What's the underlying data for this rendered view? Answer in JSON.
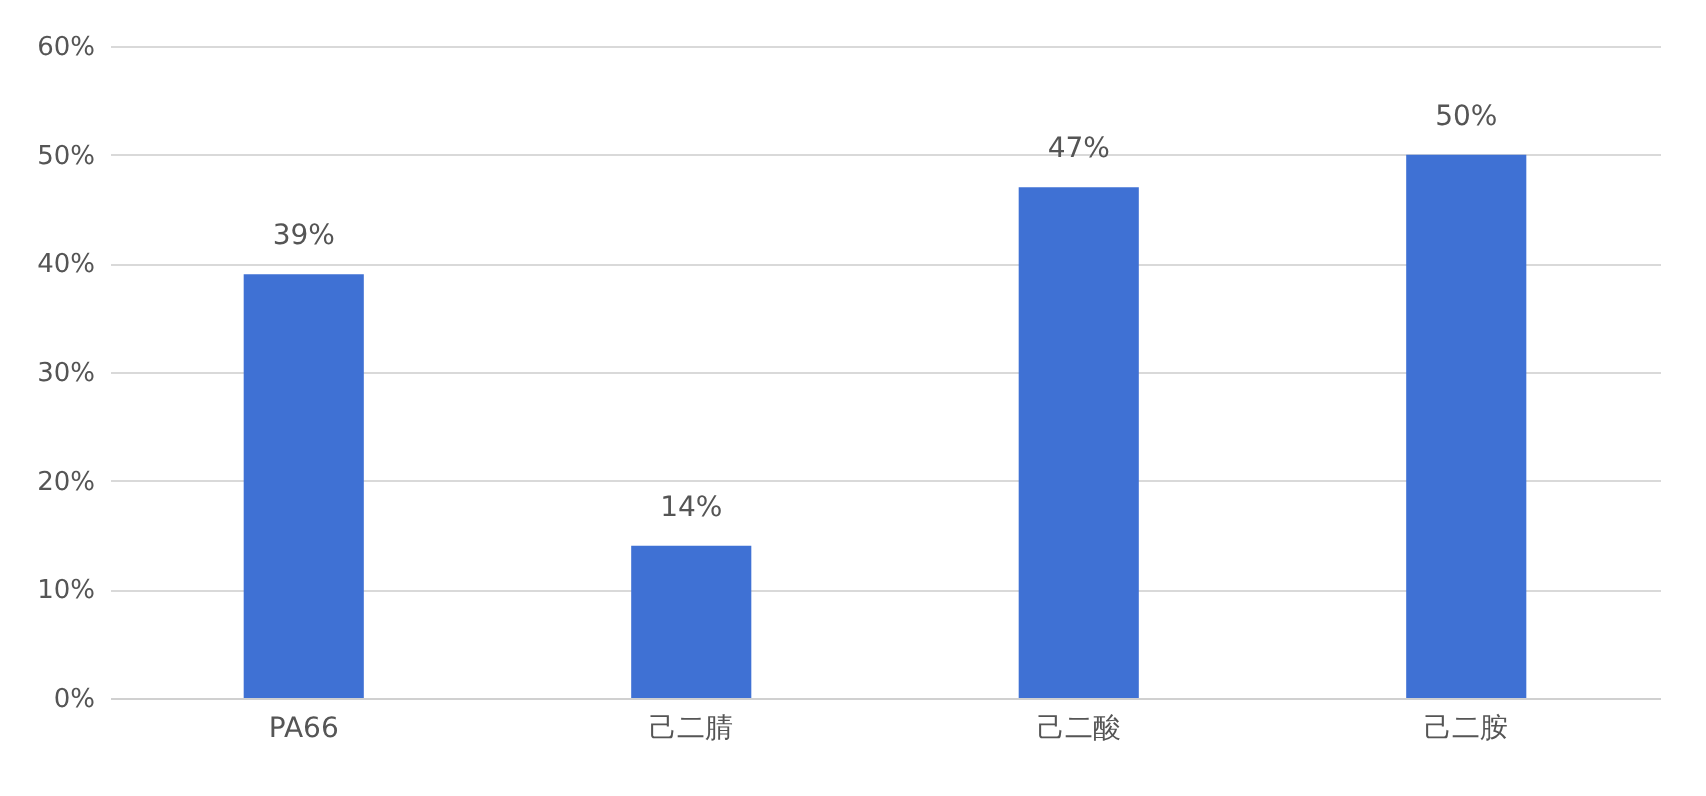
{
  "chart_data": {
    "type": "bar",
    "categories": [
      "PA66",
      "己二腈",
      "己二酸",
      "己二胺"
    ],
    "values": [
      39,
      14,
      47,
      50
    ],
    "color": "#3f71d4",
    "value_labels": [
      "39%",
      "14%",
      "47%",
      "50%"
    ],
    "ylim": [
      0,
      60
    ],
    "yticks": [
      {
        "value": 0,
        "label": "0%"
      },
      {
        "value": 10,
        "label": "10%"
      },
      {
        "value": 20,
        "label": "20%"
      },
      {
        "value": 30,
        "label": "30%"
      },
      {
        "value": 40,
        "label": "40%"
      },
      {
        "value": 50,
        "label": "50%"
      },
      {
        "value": 60,
        "label": "60%"
      }
    ],
    "grid": "y"
  }
}
